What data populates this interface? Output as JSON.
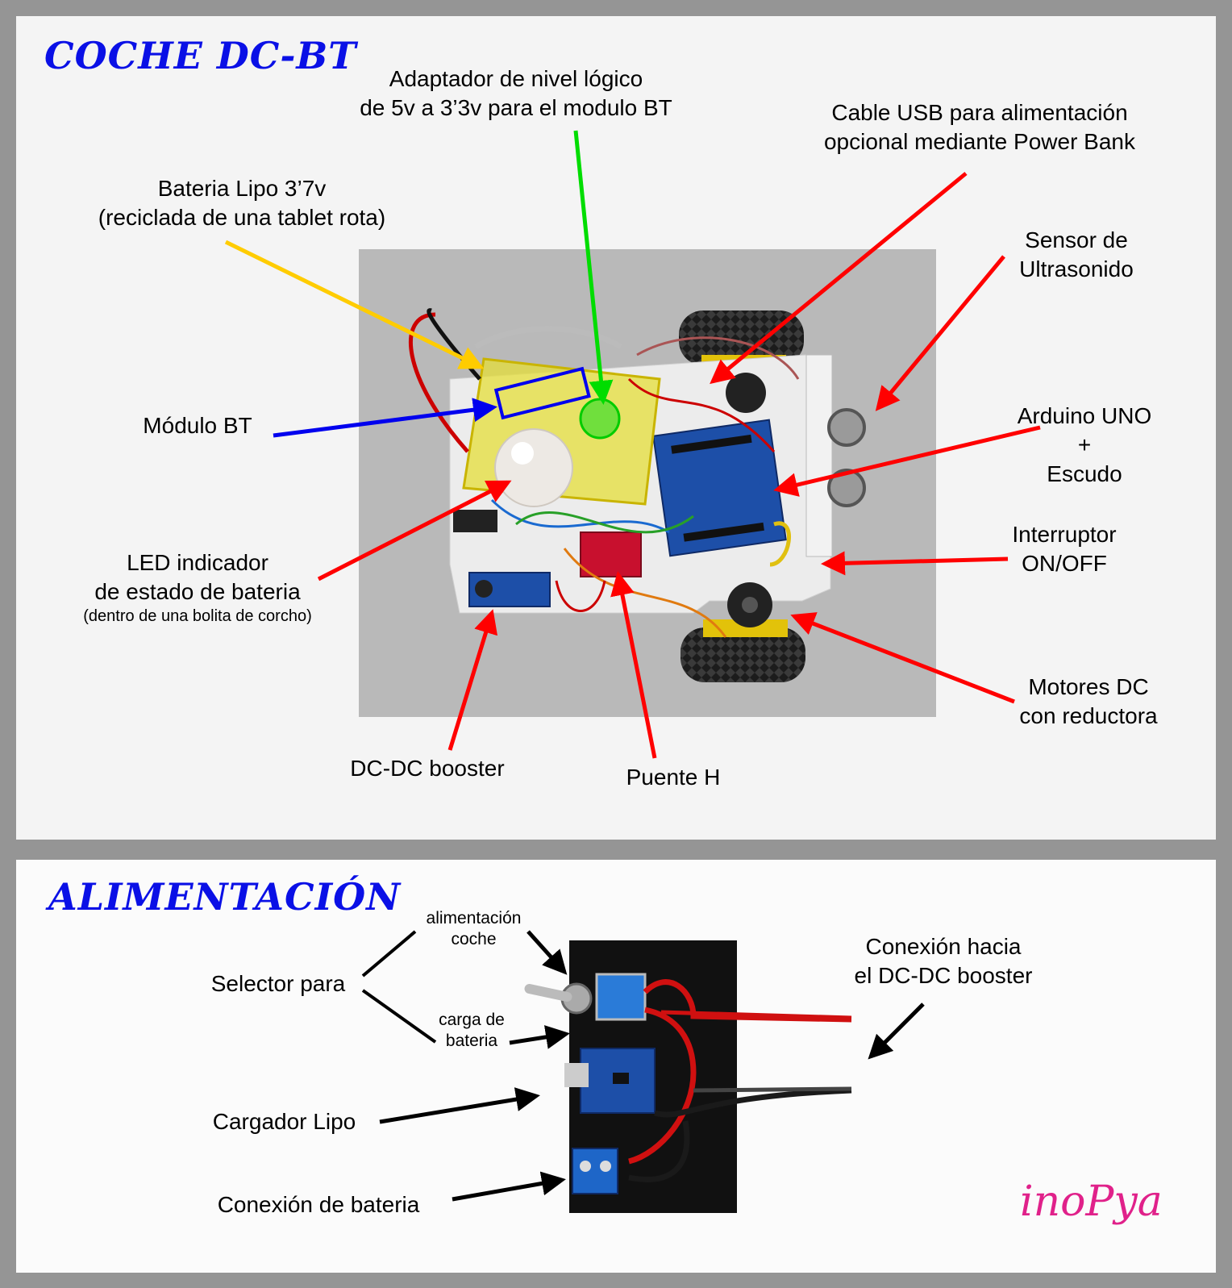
{
  "top": {
    "title": "COCHE DC-BT",
    "labels": {
      "adaptador_1": "Adaptador de nivel lógico",
      "adaptador_2": "de 5v a 3’3v para el modulo BT",
      "cable_usb_1": "Cable USB para alimentación",
      "cable_usb_2": "opcional mediante Power Bank",
      "bateria_1": "Bateria Lipo 3’7v",
      "bateria_2": "(reciclada de una tablet rota)",
      "sensor_1": "Sensor de",
      "sensor_2": "Ultrasonido",
      "modulo_bt": "Módulo BT",
      "arduino_1": "Arduino UNO",
      "arduino_2": "+",
      "arduino_3": "Escudo",
      "interruptor_1": "Interruptor",
      "interruptor_2": "ON/OFF",
      "led_1": "LED indicador",
      "led_2": "de estado de bateria",
      "led_3": "(dentro de una bolita de corcho)",
      "motores_1": "Motores DC",
      "motores_2": "con reductora",
      "dcdc": "DC-DC booster",
      "puente": "Puente H"
    }
  },
  "bottom": {
    "title": "ALIMENTACIÓN",
    "labels": {
      "alim_1": "alimentación",
      "alim_2": "coche",
      "selector": "Selector para",
      "carga_1": "carga de",
      "carga_2": "bateria",
      "conexion_booster_1": "Conexión hacia",
      "conexion_booster_2": "el DC-DC booster",
      "cargador": "Cargador Lipo",
      "conexion_bateria": "Conexión de bateria"
    },
    "logo": "inoPya"
  },
  "colors": {
    "title_blue": "#0a10e6",
    "arrow_red": "#ff0000",
    "arrow_yellow": "#ffcc00",
    "arrow_green": "#00dd00",
    "arrow_blue": "#0000ee",
    "logo_pink": "#e0218a"
  }
}
